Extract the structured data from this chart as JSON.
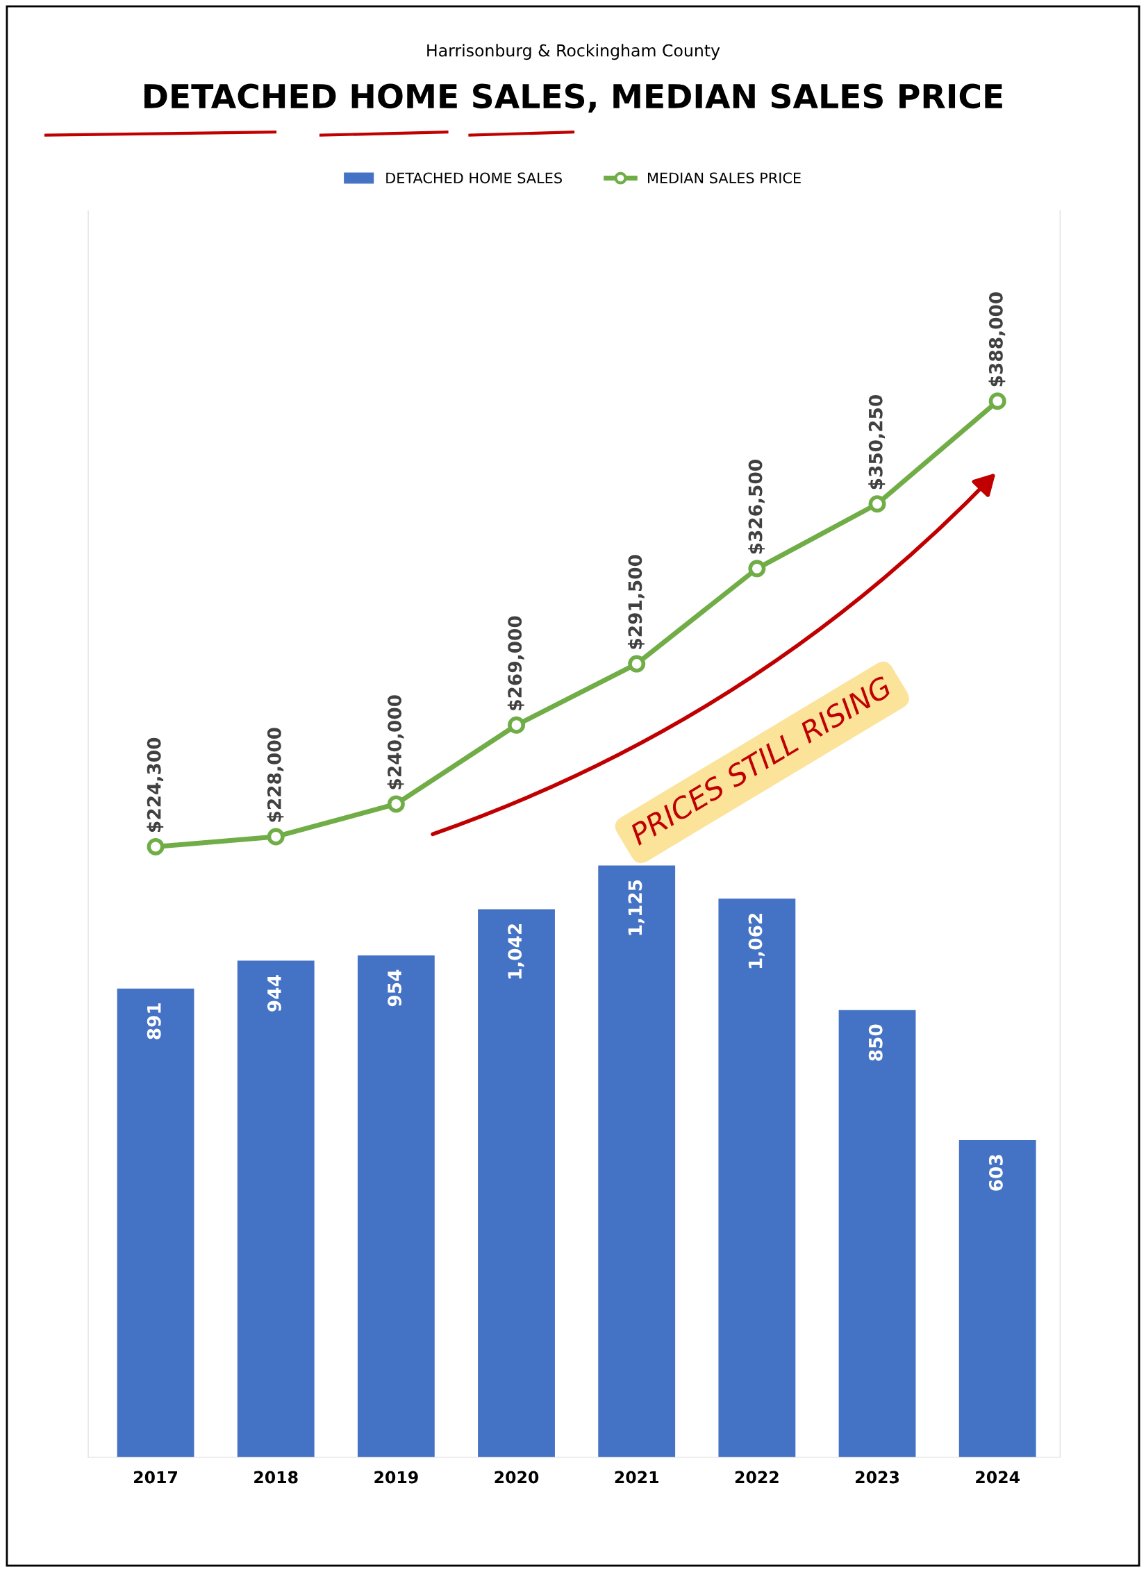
{
  "chart_data": {
    "type": "bar",
    "subtitle": "Harrisonburg & Rockingham County",
    "title": "DETACHED HOME SALES, MEDIAN SALES PRICE",
    "categories": [
      "2017",
      "2018",
      "2019",
      "2020",
      "2021",
      "2022",
      "2023",
      "2024"
    ],
    "series": [
      {
        "name": "DETACHED HOME SALES",
        "color": "#4472c4",
        "values": [
          891,
          944,
          954,
          1042,
          1125,
          1062,
          850,
          603
        ],
        "value_labels": [
          "891",
          "944",
          "954",
          "1,042",
          "1,125",
          "1,062",
          "850",
          "603"
        ]
      },
      {
        "name": "MEDIAN SALES PRICE",
        "type": "line",
        "axis": "y2",
        "color": "#70ad47",
        "marker": "circle",
        "values": [
          224300,
          228000,
          240000,
          269000,
          291500,
          326500,
          350250,
          388000
        ],
        "value_labels": [
          "$224,300",
          "$228,000",
          "$240,000",
          "$269,000",
          "$291,500",
          "$326,500",
          "$350,250",
          "$388,000"
        ]
      }
    ],
    "ylim": [
      0,
      2370
    ],
    "y2lim": [
      0,
      458000
    ],
    "tick_labels": "x",
    "legend": "top",
    "grid": false,
    "annotations": [
      "PRICES STILL RISING"
    ]
  }
}
